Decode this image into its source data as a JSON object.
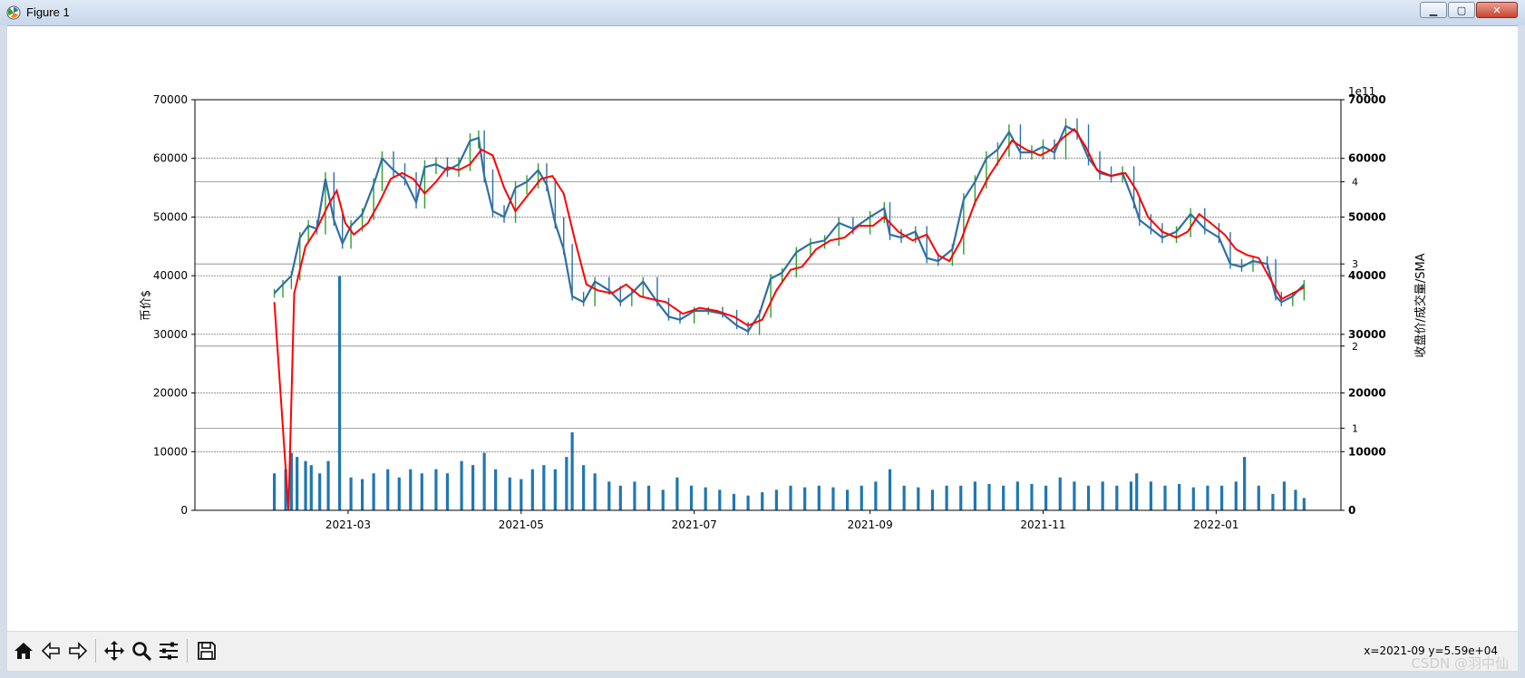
{
  "window": {
    "title": "Figure 1"
  },
  "toolbar": {
    "buttons": [
      {
        "name": "home-button",
        "icon": "home-icon"
      },
      {
        "name": "back-button",
        "icon": "arrow-left-icon"
      },
      {
        "name": "forward-button",
        "icon": "arrow-right-icon"
      },
      {
        "name": "pan-button",
        "icon": "move-icon"
      },
      {
        "name": "zoom-button",
        "icon": "magnifier-icon"
      },
      {
        "name": "subplots-button",
        "icon": "sliders-icon"
      },
      {
        "name": "save-button",
        "icon": "floppy-disk-icon"
      }
    ],
    "coords": "x=2021-09 y=5.59e+04"
  },
  "watermark": "CSDN @羽中仙",
  "colors": {
    "price_line": "#2f6fa6",
    "up_wick": "#2ca02c",
    "sma": "#ff0000",
    "volume": "#1f77b4"
  },
  "chart_data": {
    "type": "line",
    "ylabel": "币价$",
    "ylabel_right": "收盘价/成交量/SMA",
    "offset_text": "1e11",
    "ylim": [
      0,
      70000
    ],
    "yticks": [
      0,
      10000,
      20000,
      30000,
      40000,
      50000,
      60000,
      70000
    ],
    "ytick_labels": [
      "0",
      "10000",
      "20000",
      "30000",
      "40000",
      "50000",
      "60000",
      "70000"
    ],
    "xlim": [
      "2021-01-06",
      "2022-02-14"
    ],
    "xticks": [
      "2021-03-01",
      "2021-05-01",
      "2021-07-01",
      "2021-09-01",
      "2021-11-01",
      "2022-01-01"
    ],
    "xtick_labels": [
      "2021-03",
      "2021-05",
      "2021-07",
      "2021-09",
      "2021-11",
      "2022-01"
    ],
    "volume_axis": {
      "unit": "1e11",
      "ylim": [
        0,
        5
      ],
      "yticks": [
        1,
        2,
        3,
        4
      ],
      "ytick_labels": [
        "1",
        "2",
        "3",
        "4"
      ]
    },
    "series": [
      {
        "kind": "close",
        "x": [
          "2021-02-03",
          "2021-02-06",
          "2021-02-09",
          "2021-02-12",
          "2021-02-15",
          "2021-02-18",
          "2021-02-21",
          "2021-02-24",
          "2021-02-27",
          "2021-03-02",
          "2021-03-06",
          "2021-03-10",
          "2021-03-13",
          "2021-03-17",
          "2021-03-21",
          "2021-03-25",
          "2021-03-28",
          "2021-04-01",
          "2021-04-05",
          "2021-04-09",
          "2021-04-13",
          "2021-04-16",
          "2021-04-18",
          "2021-04-21",
          "2021-04-25",
          "2021-04-29",
          "2021-05-03",
          "2021-05-07",
          "2021-05-10",
          "2021-05-13",
          "2021-05-16",
          "2021-05-19",
          "2021-05-23",
          "2021-05-27",
          "2021-06-01",
          "2021-06-05",
          "2021-06-09",
          "2021-06-13",
          "2021-06-18",
          "2021-06-22",
          "2021-06-26",
          "2021-07-01",
          "2021-07-06",
          "2021-07-11",
          "2021-07-16",
          "2021-07-20",
          "2021-07-24",
          "2021-07-28",
          "2021-08-01",
          "2021-08-06",
          "2021-08-11",
          "2021-08-16",
          "2021-08-21",
          "2021-08-26",
          "2021-09-01",
          "2021-09-06",
          "2021-09-08",
          "2021-09-12",
          "2021-09-17",
          "2021-09-21",
          "2021-09-25",
          "2021-09-30",
          "2021-10-04",
          "2021-10-08",
          "2021-10-12",
          "2021-10-16",
          "2021-10-20",
          "2021-10-24",
          "2021-10-28",
          "2021-11-01",
          "2021-11-05",
          "2021-11-09",
          "2021-11-13",
          "2021-11-17",
          "2021-11-21",
          "2021-11-25",
          "2021-11-29",
          "2021-12-03",
          "2021-12-05",
          "2021-12-09",
          "2021-12-13",
          "2021-12-18",
          "2021-12-23",
          "2021-12-28",
          "2022-01-02",
          "2022-01-06",
          "2022-01-10",
          "2022-01-14",
          "2022-01-19",
          "2022-01-22",
          "2022-01-24",
          "2022-01-28",
          "2022-02-01"
        ],
        "values": [
          37000,
          38500,
          40000,
          46500,
          48500,
          48000,
          56500,
          49500,
          45500,
          48500,
          50500,
          55500,
          60000,
          58000,
          56500,
          52500,
          58500,
          59000,
          58000,
          59000,
          63000,
          63500,
          57000,
          51000,
          50000,
          55000,
          56000,
          58000,
          55500,
          49000,
          44500,
          36500,
          35500,
          39000,
          37500,
          35500,
          37000,
          39000,
          35500,
          33000,
          32500,
          34000,
          34000,
          33500,
          31500,
          30500,
          33500,
          39500,
          40500,
          44000,
          45500,
          46000,
          49000,
          48000,
          50000,
          51500,
          47000,
          46500,
          47500,
          43000,
          42500,
          44500,
          53000,
          56000,
          60000,
          61500,
          64500,
          61000,
          61000,
          62000,
          61000,
          65500,
          64500,
          60000,
          57500,
          57000,
          57500,
          52500,
          49500,
          48000,
          46500,
          47500,
          50500,
          48000,
          46500,
          42000,
          41500,
          42500,
          42000,
          36500,
          35500,
          36500,
          38500
        ]
      },
      {
        "kind": "sma",
        "x": [
          "2021-02-03",
          "2021-02-08",
          "2021-02-10",
          "2021-02-14",
          "2021-02-18",
          "2021-02-22",
          "2021-02-25",
          "2021-02-28",
          "2021-03-03",
          "2021-03-08",
          "2021-03-12",
          "2021-03-16",
          "2021-03-20",
          "2021-03-24",
          "2021-03-28",
          "2021-04-01",
          "2021-04-05",
          "2021-04-09",
          "2021-04-13",
          "2021-04-17",
          "2021-04-21",
          "2021-04-25",
          "2021-04-29",
          "2021-05-03",
          "2021-05-08",
          "2021-05-12",
          "2021-05-16",
          "2021-05-20",
          "2021-05-24",
          "2021-05-28",
          "2021-06-02",
          "2021-06-07",
          "2021-06-12",
          "2021-06-16",
          "2021-06-21",
          "2021-06-27",
          "2021-07-03",
          "2021-07-09",
          "2021-07-15",
          "2021-07-20",
          "2021-07-25",
          "2021-07-30",
          "2021-08-04",
          "2021-08-08",
          "2021-08-13",
          "2021-08-18",
          "2021-08-23",
          "2021-08-28",
          "2021-09-02",
          "2021-09-06",
          "2021-09-11",
          "2021-09-16",
          "2021-09-21",
          "2021-09-25",
          "2021-09-29",
          "2021-10-03",
          "2021-10-08",
          "2021-10-13",
          "2021-10-17",
          "2021-10-21",
          "2021-10-26",
          "2021-10-31",
          "2021-11-04",
          "2021-11-08",
          "2021-11-12",
          "2021-11-16",
          "2021-11-20",
          "2021-11-25",
          "2021-11-30",
          "2021-12-04",
          "2021-12-08",
          "2021-12-13",
          "2021-12-18",
          "2021-12-22",
          "2021-12-26",
          "2021-12-30",
          "2022-01-04",
          "2022-01-08",
          "2022-01-12",
          "2022-01-16",
          "2022-01-20",
          "2022-01-24",
          "2022-01-28",
          "2022-02-01"
        ],
        "values": [
          35500,
          0,
          37000,
          45000,
          48000,
          52000,
          54500,
          49000,
          47000,
          49000,
          52500,
          56500,
          57500,
          56500,
          54000,
          56000,
          58500,
          58000,
          59000,
          61500,
          60500,
          55000,
          51000,
          53500,
          56500,
          57000,
          54000,
          46000,
          38500,
          37500,
          37000,
          38500,
          36500,
          36000,
          35500,
          33500,
          34500,
          34000,
          33000,
          31500,
          32500,
          37500,
          41000,
          41500,
          44500,
          46000,
          46500,
          48500,
          48500,
          50000,
          47500,
          46000,
          47000,
          43500,
          42500,
          46000,
          52500,
          57000,
          60000,
          63000,
          61500,
          60500,
          61500,
          63500,
          65000,
          62000,
          58000,
          57000,
          57500,
          54500,
          50000,
          47500,
          46500,
          47500,
          50500,
          49000,
          47000,
          44500,
          43500,
          43000,
          39500,
          36000,
          37000,
          38000
        ]
      }
    ],
    "volume": {
      "x": [
        "2021-02-03",
        "2021-02-07",
        "2021-02-09",
        "2021-02-11",
        "2021-02-14",
        "2021-02-16",
        "2021-02-19",
        "2021-02-22",
        "2021-02-26",
        "2021-03-02",
        "2021-03-06",
        "2021-03-10",
        "2021-03-15",
        "2021-03-19",
        "2021-03-23",
        "2021-03-27",
        "2021-04-01",
        "2021-04-05",
        "2021-04-10",
        "2021-04-14",
        "2021-04-18",
        "2021-04-22",
        "2021-04-27",
        "2021-05-01",
        "2021-05-05",
        "2021-05-09",
        "2021-05-13",
        "2021-05-17",
        "2021-05-19",
        "2021-05-23",
        "2021-05-27",
        "2021-06-01",
        "2021-06-05",
        "2021-06-10",
        "2021-06-15",
        "2021-06-20",
        "2021-06-25",
        "2021-06-30",
        "2021-07-05",
        "2021-07-10",
        "2021-07-15",
        "2021-07-20",
        "2021-07-25",
        "2021-07-30",
        "2021-08-04",
        "2021-08-09",
        "2021-08-14",
        "2021-08-19",
        "2021-08-24",
        "2021-08-29",
        "2021-09-03",
        "2021-09-08",
        "2021-09-13",
        "2021-09-18",
        "2021-09-23",
        "2021-09-28",
        "2021-10-03",
        "2021-10-08",
        "2021-10-13",
        "2021-10-18",
        "2021-10-23",
        "2021-10-28",
        "2021-11-02",
        "2021-11-07",
        "2021-11-12",
        "2021-11-17",
        "2021-11-22",
        "2021-11-27",
        "2021-12-02",
        "2021-12-04",
        "2021-12-09",
        "2021-12-14",
        "2021-12-19",
        "2021-12-24",
        "2021-12-29",
        "2022-01-03",
        "2022-01-08",
        "2022-01-11",
        "2022-01-16",
        "2022-01-21",
        "2022-01-25",
        "2022-01-29",
        "2022-02-01"
      ],
      "values": [
        0.45,
        0.5,
        0.7,
        0.65,
        0.6,
        0.55,
        0.45,
        0.6,
        2.85,
        0.4,
        0.38,
        0.45,
        0.5,
        0.4,
        0.5,
        0.45,
        0.5,
        0.45,
        0.6,
        0.55,
        0.7,
        0.5,
        0.4,
        0.38,
        0.5,
        0.55,
        0.5,
        0.65,
        0.95,
        0.55,
        0.45,
        0.35,
        0.3,
        0.35,
        0.3,
        0.25,
        0.4,
        0.3,
        0.28,
        0.25,
        0.2,
        0.18,
        0.22,
        0.25,
        0.3,
        0.28,
        0.3,
        0.28,
        0.25,
        0.3,
        0.35,
        0.5,
        0.3,
        0.28,
        0.25,
        0.3,
        0.3,
        0.35,
        0.32,
        0.3,
        0.35,
        0.32,
        0.3,
        0.4,
        0.35,
        0.3,
        0.35,
        0.3,
        0.35,
        0.45,
        0.35,
        0.3,
        0.32,
        0.28,
        0.3,
        0.3,
        0.35,
        0.65,
        0.3,
        0.2,
        0.35,
        0.25,
        0.15
      ]
    }
  }
}
